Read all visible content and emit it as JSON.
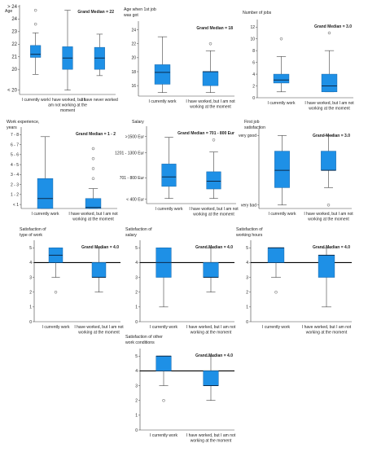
{
  "colors": {
    "box": "#1E90E6",
    "box_stroke": "#1565A8",
    "axis": "#444444",
    "median_ref": "#000000"
  },
  "chart_data": [
    {
      "type": "box",
      "title": "Age",
      "ylim": [
        0,
        7
      ],
      "y_ticks": [
        "< 20",
        "20",
        "21",
        "22",
        "23",
        "24",
        "> 24"
      ],
      "grand_median": {
        "label": "Grand Median = 22",
        "show_line": false
      },
      "categories": [
        "I currently work",
        "I have worked, but I am not working at the moment",
        "I have never worked"
      ],
      "boxes": [
        {
          "whisker_low": 1.6,
          "q1": 2.95,
          "median": 3.2,
          "q3": 3.9,
          "whisker_high": 4.9,
          "outliers": [
            5.6,
            6.7
          ]
        },
        {
          "whisker_low": 0.35,
          "q1": 2.0,
          "median": 2.9,
          "q3": 3.8,
          "whisker_high": 6.7,
          "outliers": []
        },
        {
          "whisker_low": 1.5,
          "q1": 2.0,
          "median": 2.9,
          "q3": 3.75,
          "whisker_high": 4.8,
          "outliers": []
        }
      ]
    },
    {
      "type": "box",
      "title": "Age when 1st job was got",
      "ylim": [
        14.5,
        25
      ],
      "y_ticks": [
        "16",
        "18",
        "20",
        "22",
        "24"
      ],
      "grand_median": {
        "label": "Grand Median = 18",
        "show_line": false
      },
      "categories": [
        "I currently work",
        "I have worked, but I am not working at the moment"
      ],
      "boxes": [
        {
          "whisker_low": 15,
          "q1": 16.2,
          "median": 17.9,
          "q3": 19,
          "whisker_high": 23,
          "outliers": []
        },
        {
          "whisker_low": 15,
          "q1": 16,
          "median": 18,
          "q3": 18,
          "whisker_high": 21,
          "outliers": [
            22
          ]
        }
      ]
    },
    {
      "type": "box",
      "title": "Number of jobs",
      "ylim": [
        0,
        13
      ],
      "y_ticks": [
        "0",
        "2",
        "4",
        "6",
        "8",
        "10",
        "12"
      ],
      "grand_median": {
        "label": "Grand Median = 3.0",
        "show_line": false
      },
      "categories": [
        "I currently work",
        "I have worked, but I am not working at the moment"
      ],
      "boxes": [
        {
          "whisker_low": 1,
          "q1": 2.5,
          "median": 3,
          "q3": 4,
          "whisker_high": 7,
          "outliers": [
            10
          ]
        },
        {
          "whisker_low": 1,
          "q1": 1,
          "median": 2,
          "q3": 4,
          "whisker_high": 8,
          "outliers": [
            11
          ]
        }
      ]
    },
    {
      "type": "box",
      "title": "Work experience, years",
      "ylim": [
        0,
        8
      ],
      "y_ticks": [
        "< 1",
        "1 - 2",
        "2 - 3",
        "3 - 4",
        "4 - 5",
        "5 - 6",
        "6 - 7",
        "7 - 8"
      ],
      "grand_median": {
        "label": "Grand Median = 1 - 2",
        "show_line": false
      },
      "categories": [
        "I currently work",
        "I have worked, but I am not working at the moment"
      ],
      "boxes": [
        {
          "whisker_low": 0,
          "q1": 0,
          "median": 1,
          "q3": 3,
          "whisker_high": 7.2,
          "outliers": []
        },
        {
          "whisker_low": 0,
          "q1": 0,
          "median": 0.1,
          "q3": 1,
          "whisker_high": 2,
          "outliers": [
            3,
            4,
            5,
            6
          ]
        }
      ]
    },
    {
      "type": "box",
      "title": "Salary",
      "ylim": [
        0,
        4.4
      ],
      "y_ticks": [
        "< 400 Eur",
        "701 - 800 Eur",
        "1201 - 1300 Eur",
        ">1500 Eur"
      ],
      "y_tick_values": [
        0.25,
        1.5,
        2.95,
        3.9
      ],
      "grand_median": {
        "label": "Grand Median = 701 - 800 Eur",
        "show_line": false
      },
      "categories": [
        "I currently work",
        "I have worked, but I am not working at the moment"
      ],
      "boxes": [
        {
          "whisker_low": 0.3,
          "q1": 1.0,
          "median": 1.55,
          "q3": 2.3,
          "whisker_high": 3.85,
          "outliers": []
        },
        {
          "whisker_low": 0.3,
          "q1": 0.85,
          "median": 1.3,
          "q3": 1.85,
          "whisker_high": 3.0,
          "outliers": [
            3.7
          ]
        }
      ]
    },
    {
      "type": "box",
      "title": "First job satisfaction",
      "ylim": [
        0.8,
        5.3
      ],
      "y_ticks": [
        "very bad",
        "very good"
      ],
      "y_tick_values": [
        1,
        5
      ],
      "grand_median": {
        "label": "Grand Median = 3.0",
        "show_line": false
      },
      "categories": [
        "I currently work",
        "I have worked, but I am not working at the moment"
      ],
      "boxes": [
        {
          "whisker_low": 1,
          "q1": 2,
          "median": 3,
          "q3": 4.1,
          "whisker_high": 5,
          "outliers": []
        },
        {
          "whisker_low": 2,
          "q1": 3,
          "median": 3,
          "q3": 4.1,
          "whisker_high": 5,
          "outliers": [
            1
          ]
        }
      ]
    },
    {
      "type": "box",
      "title": "Satisfaction of type of work",
      "ylim": [
        0,
        5.4
      ],
      "y_ticks": [
        "0",
        "1",
        "2",
        "3",
        "4",
        "5"
      ],
      "grand_median": {
        "label": "Grand Median = 4.0",
        "show_line": true,
        "value": 4
      },
      "categories": [
        "I currently work",
        "I have worked, but I am not working at the moment"
      ],
      "boxes": [
        {
          "whisker_low": 3,
          "q1": 4,
          "median": 4.5,
          "q3": 5,
          "whisker_high": 5,
          "outliers": [
            2
          ]
        },
        {
          "whisker_low": 2,
          "q1": 3,
          "median": 3,
          "q3": 4,
          "whisker_high": 5,
          "outliers": []
        }
      ]
    },
    {
      "type": "box",
      "title": "Satisfaction of salary",
      "ylim": [
        0,
        5.4
      ],
      "y_ticks": [
        "0",
        "1",
        "2",
        "3",
        "4",
        "5"
      ],
      "grand_median": {
        "label": "Grand Median = 4.0",
        "show_line": true,
        "value": 4
      },
      "categories": [
        "I currently work",
        "I have worked, but I am not working at the moment"
      ],
      "boxes": [
        {
          "whisker_low": 1,
          "q1": 3,
          "median": 4,
          "q3": 5,
          "whisker_high": 5,
          "outliers": []
        },
        {
          "whisker_low": 2,
          "q1": 3,
          "median": 3,
          "q3": 4,
          "whisker_high": 5,
          "outliers": []
        }
      ]
    },
    {
      "type": "box",
      "title": "Satisfaction of working hours",
      "ylim": [
        0,
        5.4
      ],
      "y_ticks": [
        "0",
        "1",
        "2",
        "3",
        "4",
        "5"
      ],
      "grand_median": {
        "label": "Grand Median = 4.0",
        "show_line": true,
        "value": 4
      },
      "categories": [
        "I currently work",
        "I have worked, but I am not working at the moment"
      ],
      "boxes": [
        {
          "whisker_low": 3,
          "q1": 4,
          "median": 5,
          "q3": 5,
          "whisker_high": 5,
          "outliers": [
            2
          ]
        },
        {
          "whisker_low": 1,
          "q1": 3,
          "median": 4.5,
          "q3": 4.5,
          "whisker_high": 5,
          "outliers": []
        }
      ]
    },
    {
      "type": "box",
      "title": "Satisfaction of other work conditions",
      "ylim": [
        0,
        5.4
      ],
      "y_ticks": [
        "0",
        "1",
        "2",
        "3",
        "4",
        "5"
      ],
      "grand_median": {
        "label": "Grand Median = 4.0",
        "show_line": true,
        "value": 4
      },
      "categories": [
        "I currently work",
        "I have worked, but I am not working at the moment"
      ],
      "boxes": [
        {
          "whisker_low": 3,
          "q1": 4,
          "median": 5,
          "q3": 5,
          "whisker_high": 5,
          "outliers": [
            2
          ]
        },
        {
          "whisker_low": 2,
          "q1": 3,
          "median": 3,
          "q3": 4,
          "whisker_high": 5,
          "outliers": []
        }
      ]
    }
  ]
}
